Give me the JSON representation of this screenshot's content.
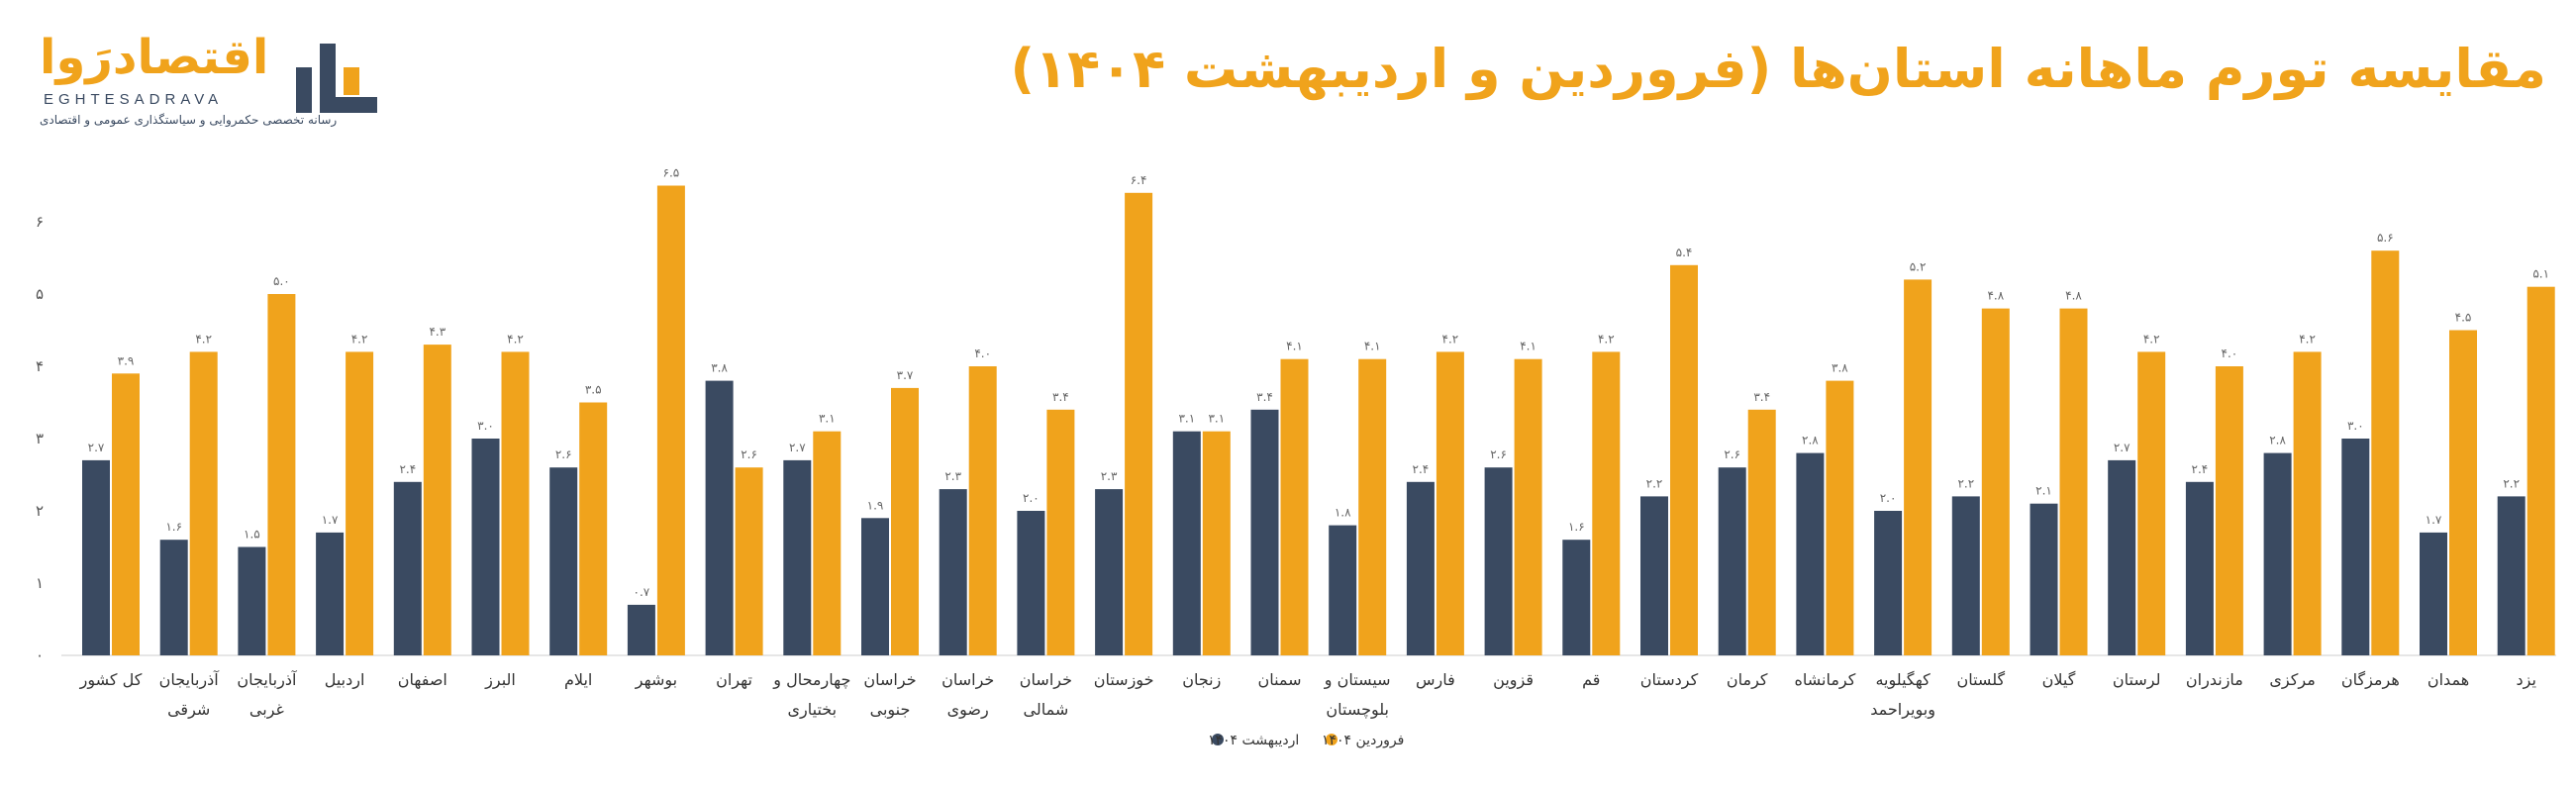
{
  "header": {
    "title": "مقایسه تورم ماهانه استان‌ها (فروردین و اردیبهشت ۱۴۰۴)",
    "logo_name": "اقتصادرَوا",
    "logo_latin": "EGHTESADRAVA",
    "logo_tagline": "رسانه تخصصی حکمروایی و سیاستگذاری عمومی و اقتصادی"
  },
  "colors": {
    "ordibehesht": "#3a4a61",
    "farvardin": "#f0a31c",
    "title": "#f0a31c"
  },
  "chart_data": {
    "type": "bar",
    "title": "مقایسه تورم ماهانه استان‌ها (فروردین و اردیبهشت ۱۴۰۴)",
    "xlabel": "",
    "ylabel": "",
    "ylim": [
      0,
      7
    ],
    "yticks": [
      0,
      1,
      2,
      3,
      4,
      5,
      6
    ],
    "ytick_labels": [
      "۰",
      "۱",
      "۲",
      "۳",
      "۴",
      "۵",
      "۶"
    ],
    "grid": false,
    "legend_position": "bottom-center",
    "categories": [
      "کل کشور",
      "آذربایجان شرقی",
      "آذربایجان غربی",
      "اردبیل",
      "اصفهان",
      "البرز",
      "ایلام",
      "بوشهر",
      "تهران",
      "چهارمحال و بختیاری",
      "خراسان جنوبی",
      "خراسان رضوی",
      "خراسان شمالی",
      "خوزستان",
      "زنجان",
      "سمنان",
      "سیستان و بلوچستان",
      "فارس",
      "قزوین",
      "قم",
      "کردستان",
      "کرمان",
      "کرمانشاه",
      "کهگیلویه وبویراحمد",
      "گلستان",
      "گیلان",
      "لرستان",
      "مازندران",
      "مرکزی",
      "هرمزگان",
      "همدان",
      "یزد"
    ],
    "category_lines": [
      [
        "کل کشور"
      ],
      [
        "آذربایجان",
        "شرقی"
      ],
      [
        "آذربایجان",
        "غربی"
      ],
      [
        "اردبیل"
      ],
      [
        "اصفهان"
      ],
      [
        "البرز"
      ],
      [
        "ایلام"
      ],
      [
        "بوشهر"
      ],
      [
        "تهران"
      ],
      [
        "چهارمحال و",
        "بختیاری"
      ],
      [
        "خراسان",
        "جنوبی"
      ],
      [
        "خراسان",
        "رضوی"
      ],
      [
        "خراسان",
        "شمالی"
      ],
      [
        "خوزستان"
      ],
      [
        "زنجان"
      ],
      [
        "سمنان"
      ],
      [
        "سیستان و",
        "بلوچستان"
      ],
      [
        "فارس"
      ],
      [
        "قزوین"
      ],
      [
        "قم"
      ],
      [
        "کردستان"
      ],
      [
        "کرمان"
      ],
      [
        "کرمانشاه"
      ],
      [
        "کهگیلویه",
        "وبویراحمد"
      ],
      [
        "گلستان"
      ],
      [
        "گیلان"
      ],
      [
        "لرستان"
      ],
      [
        "مازندران"
      ],
      [
        "مرکزی"
      ],
      [
        "هرمزگان"
      ],
      [
        "همدان"
      ],
      [
        "یزد"
      ]
    ],
    "series": [
      {
        "name": "اردیبهشت ۱۴۰۴",
        "color": "#3a4a61",
        "values": [
          2.7,
          1.6,
          1.5,
          1.7,
          2.4,
          3.0,
          2.6,
          0.7,
          3.8,
          2.7,
          1.9,
          2.3,
          2.0,
          2.3,
          3.1,
          3.4,
          1.8,
          2.4,
          2.6,
          1.6,
          2.2,
          2.6,
          2.8,
          2.0,
          2.2,
          2.1,
          2.7,
          2.4,
          2.8,
          3.0,
          1.7,
          2.2
        ],
        "labels": [
          "۲.۷",
          "۱.۶",
          "۱.۵",
          "۱.۷",
          "۲.۴",
          "۳.۰",
          "۲.۶",
          "۰.۷",
          "۳.۸",
          "۲.۷",
          "۱.۹",
          "۲.۳",
          "۲.۰",
          "۲.۳",
          "۳.۱",
          "۳.۴",
          "۱.۸",
          "۲.۴",
          "۲.۶",
          "۱.۶",
          "۲.۲",
          "۲.۶",
          "۲.۸",
          "۲.۰",
          "۲.۲",
          "۲.۱",
          "۲.۷",
          "۲.۴",
          "۲.۸",
          "۳.۰",
          "۱.۷",
          "۲.۲"
        ]
      },
      {
        "name": "فروردین ۱۴۰۴",
        "color": "#f0a31c",
        "values": [
          3.9,
          4.2,
          5.0,
          4.2,
          4.3,
          4.2,
          3.5,
          6.5,
          2.6,
          3.1,
          3.7,
          4.0,
          3.4,
          6.4,
          3.1,
          4.1,
          4.1,
          4.2,
          4.1,
          4.2,
          5.4,
          3.4,
          3.8,
          5.2,
          4.8,
          4.8,
          4.2,
          4.0,
          4.2,
          5.6,
          4.5,
          5.1
        ],
        "labels": [
          "۳.۹",
          "۴.۲",
          "۵.۰",
          "۴.۲",
          "۴.۳",
          "۴.۲",
          "۳.۵",
          "۶.۵",
          "۲.۶",
          "۳.۱",
          "۳.۷",
          "۴.۰",
          "۳.۴",
          "۶.۴",
          "۳.۱",
          "۴.۱",
          "۴.۱",
          "۴.۲",
          "۴.۱",
          "۴.۲",
          "۵.۴",
          "۳.۴",
          "۳.۸",
          "۵.۲",
          "۴.۸",
          "۴.۸",
          "۴.۲",
          "۴.۰",
          "۴.۲",
          "۵.۶",
          "۴.۵",
          "۵.۱"
        ]
      }
    ]
  }
}
